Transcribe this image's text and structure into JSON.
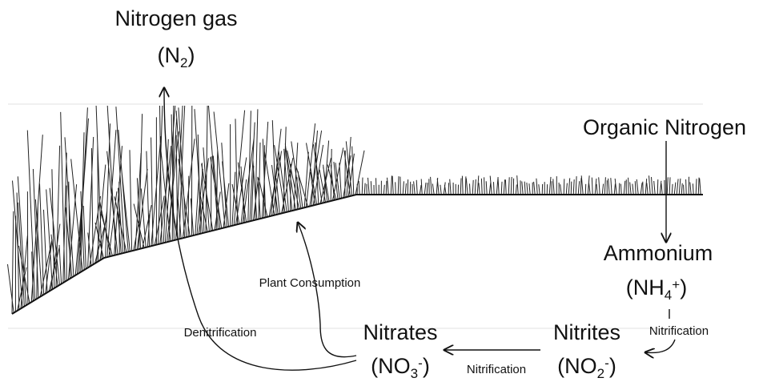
{
  "nodes": [
    {
      "label": "Nitrogen gas",
      "formula": [
        {
          "text": "(N"
        },
        {
          "sub": "2"
        },
        {
          "text": ")"
        }
      ]
    },
    {
      "label": "Organic Nitrogen"
    },
    {
      "label": "Ammonium",
      "formula": [
        {
          "text": "(NH"
        },
        {
          "sub": "4"
        },
        {
          "sup": "+"
        },
        {
          "text": ")"
        }
      ]
    },
    {
      "label": "Nitrites",
      "formula": [
        {
          "text": "(NO"
        },
        {
          "sub": "2"
        },
        {
          "sup": "-"
        },
        {
          "text": ")"
        }
      ]
    },
    {
      "label": "Nitrates",
      "formula": [
        {
          "text": "(NO"
        },
        {
          "sub": "3"
        },
        {
          "sup": "-"
        },
        {
          "text": ")"
        }
      ]
    }
  ],
  "edges": [
    {
      "label": "Plant Consumption"
    },
    {
      "label": "Denitrification"
    },
    {
      "label": "Nitrification"
    },
    {
      "label": "Nitrification"
    }
  ]
}
